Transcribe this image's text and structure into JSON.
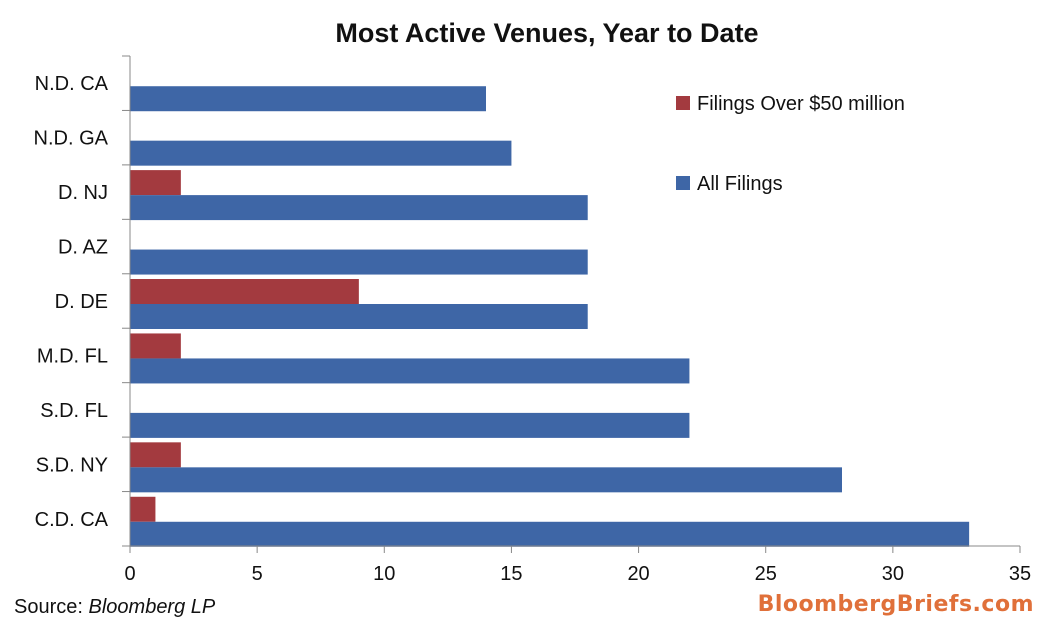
{
  "chart_data": {
    "type": "bar",
    "orientation": "horizontal",
    "title": "Most Active Venues, Year to Date",
    "categories": [
      "N.D. CA",
      "N.D. GA",
      "D. NJ",
      "D. AZ",
      "D. DE",
      "M.D. FL",
      "S.D. FL",
      "S.D. NY",
      "C.D. CA"
    ],
    "series": [
      {
        "name": "Filings Over $50 million",
        "color": "#a33a3f",
        "values": [
          0,
          0,
          2,
          0,
          9,
          2,
          0,
          2,
          1
        ]
      },
      {
        "name": "All Filings",
        "color": "#3e66a6",
        "values": [
          14,
          15,
          18,
          18,
          18,
          22,
          22,
          28,
          33
        ]
      }
    ],
    "xlim": [
      0,
      35
    ],
    "xticks": [
      0,
      5,
      10,
      15,
      20,
      25,
      30,
      35
    ],
    "legend_position": "top-right",
    "grid": false
  },
  "footer": {
    "source_label": "Source:",
    "source_name": "Bloomberg LP",
    "brand": "BloombergBriefs.com"
  }
}
